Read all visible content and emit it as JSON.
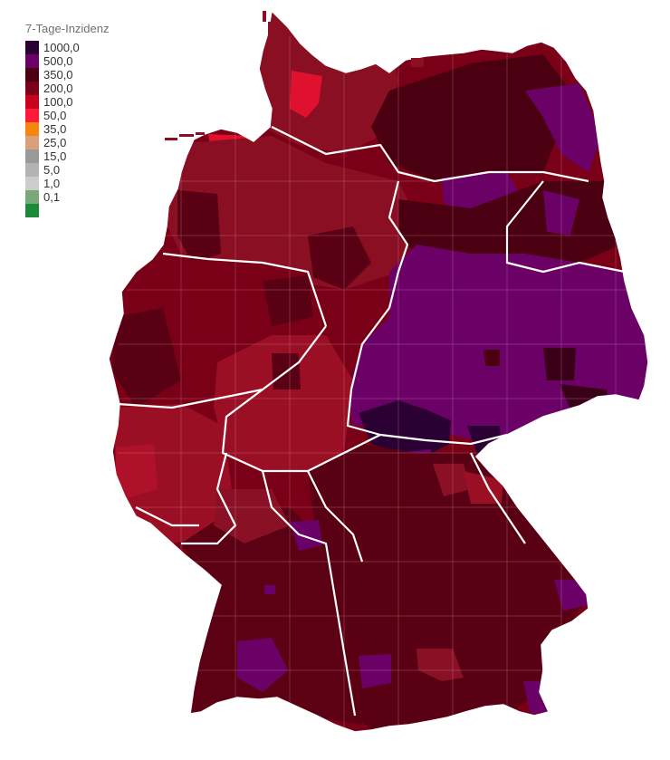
{
  "legend": {
    "title": "7-Tage-Inzidenz",
    "items": [
      {
        "label": "1000,0",
        "color": "#2b0033"
      },
      {
        "label": "500,0",
        "color": "#6b0066"
      },
      {
        "label": "350,0",
        "color": "#4a0011"
      },
      {
        "label": "200,0",
        "color": "#7a0017"
      },
      {
        "label": "100,0",
        "color": "#c8001e"
      },
      {
        "label": "50,0",
        "color": "#ff1a3c"
      },
      {
        "label": "35,0",
        "color": "#f5870f"
      },
      {
        "label": "25,0",
        "color": "#d9a07d"
      },
      {
        "label": "15,0",
        "color": "#999999"
      },
      {
        "label": "5,0",
        "color": "#b3b3b3"
      },
      {
        "label": "1,0",
        "color": "#cccccc"
      },
      {
        "label": "0,1",
        "color": "#7aa87a"
      },
      {
        "label": "",
        "color": "#1a8a3a"
      }
    ]
  },
  "map": {
    "country": "Germany",
    "region_colors": {
      "north_sh": "#8a0f22",
      "north_coast_red": "#e0112f",
      "mv_dark": "#4a0010",
      "mv_purple": "#6b0066",
      "niedersachsen": "#8a0f22",
      "nrw": "#7a0017",
      "nrw_west": "#5a0014",
      "hessen": "#9a0f24",
      "rlp": "#9a0f24",
      "thueringen_sachsen": "#6b0066",
      "brandenburg_purple": "#6b0066",
      "bayern": "#5a0014",
      "bw": "#5c0014",
      "hotspot": "#2b0033"
    }
  }
}
